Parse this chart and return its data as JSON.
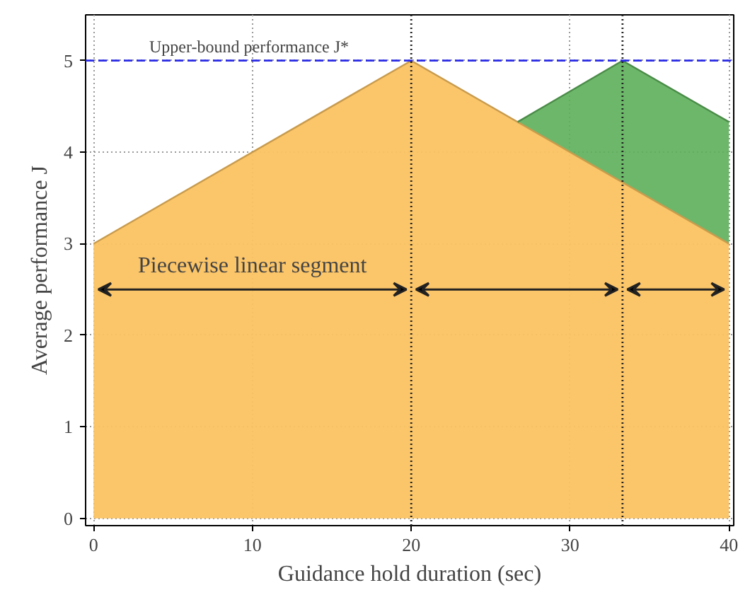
{
  "chart_data": {
    "type": "area",
    "xlabel": "Guidance hold duration (sec)",
    "ylabel": "Average performance J",
    "xlim": [
      -0.5,
      40.3
    ],
    "ylim": [
      -0.08,
      5.5
    ],
    "xticks": [
      0,
      10,
      20,
      30,
      40
    ],
    "yticks": [
      0,
      1,
      2,
      3,
      4,
      5
    ],
    "grid": true,
    "series": [
      {
        "color": "#fbc261",
        "x": [
          0,
          20,
          40
        ],
        "values": [
          3,
          5,
          3
        ]
      },
      {
        "color": "#5daf5a",
        "x": [
          26.7,
          33.3,
          40
        ],
        "values": [
          4.33,
          5,
          4.33
        ]
      }
    ],
    "ref_lines": [
      {
        "axis": "y",
        "value": 5,
        "label": "Upper-bound performance J*",
        "color": "#2a2ae6",
        "line_style": "dashed"
      },
      {
        "axis": "x",
        "value": 20,
        "label": null,
        "color": "#222222",
        "line_style": "dotted"
      },
      {
        "axis": "x",
        "value": 33.3,
        "label": null,
        "color": "#222222",
        "line_style": "dotted"
      }
    ],
    "annotations": [
      "Piecewise linear segment"
    ]
  }
}
